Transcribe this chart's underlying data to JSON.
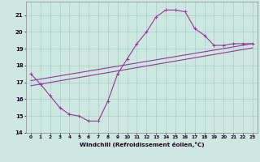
{
  "bg_color": "#cce8e0",
  "grid_color": "#aacccc",
  "line_color": "#993399",
  "xlabel": "Windchill (Refroidissement éolien,°C)",
  "xlim": [
    -0.5,
    23.5
  ],
  "ylim": [
    14,
    21.8
  ],
  "yticks": [
    14,
    15,
    16,
    17,
    18,
    19,
    20,
    21
  ],
  "xticks": [
    0,
    1,
    2,
    3,
    4,
    5,
    6,
    7,
    8,
    9,
    10,
    11,
    12,
    13,
    14,
    15,
    16,
    17,
    18,
    19,
    20,
    21,
    22,
    23
  ],
  "curve1_x": [
    0,
    1,
    2,
    3,
    4,
    5,
    6,
    7,
    8,
    9,
    10,
    11,
    12,
    13,
    14,
    15,
    16,
    17,
    18,
    19,
    20,
    21,
    22,
    23
  ],
  "curve1_y": [
    17.5,
    16.9,
    16.2,
    15.5,
    15.1,
    15.0,
    14.7,
    14.7,
    15.9,
    17.5,
    18.4,
    19.3,
    20.0,
    20.9,
    21.3,
    21.3,
    21.2,
    20.2,
    19.8,
    19.2,
    19.2,
    19.3,
    19.3,
    19.3
  ],
  "line2_x": [
    0,
    23
  ],
  "line2_y": [
    17.1,
    19.3
  ],
  "line3_x": [
    0,
    23
  ],
  "line3_y": [
    16.8,
    19.05
  ],
  "marker": "+"
}
